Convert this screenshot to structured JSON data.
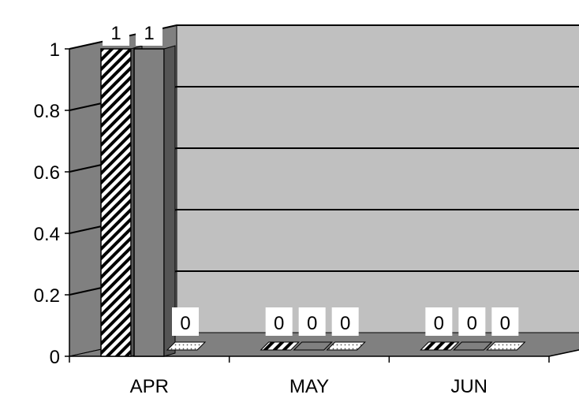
{
  "chart_data": {
    "type": "bar",
    "title": "",
    "xlabel": "",
    "ylabel": "",
    "categories": [
      "APR",
      "MAY",
      "JUN"
    ],
    "ylim": [
      0,
      1
    ],
    "y_ticks": [
      "0",
      "0.2",
      "0.4",
      "0.6",
      "0.8",
      "1"
    ],
    "grid": true,
    "three_d": true,
    "series": [
      {
        "values": [
          1,
          0,
          0
        ],
        "labels": [
          "1",
          "0",
          "0"
        ],
        "color": "#ffffff",
        "pattern": "diagonal-stripes"
      },
      {
        "values": [
          1,
          0,
          0
        ],
        "labels": [
          "1",
          "0",
          "0"
        ],
        "color": "#808080",
        "pattern": "solid"
      },
      {
        "values": [
          0,
          0,
          0
        ],
        "labels": [
          "0",
          "0",
          "0"
        ],
        "color": "#ffffff",
        "pattern": "dots"
      }
    ],
    "colors": {
      "back_wall": "#c0c0c0",
      "side_wall": "#808080",
      "floor": "#808080",
      "gridline": "#000000"
    }
  }
}
